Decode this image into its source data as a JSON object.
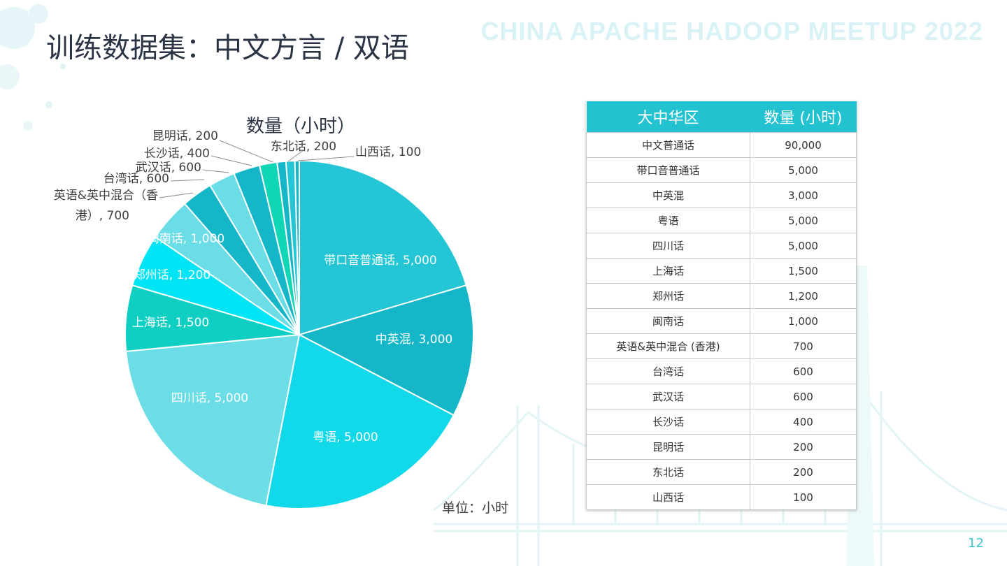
{
  "slide": {
    "title": "训练数据集：中文方言 / 双语",
    "watermark": "CHINA APACHE HADOOP MEETUP 2022",
    "unit_note": "单位：小时",
    "page_number": "12"
  },
  "chart_data": {
    "type": "pie",
    "title": "数量（小时）",
    "slices": [
      {
        "label": "带口音普通话",
        "value": 5000,
        "label_text": "带口音普通话, 5,000",
        "color": "#24c5d4"
      },
      {
        "label": "中英混",
        "value": 3000,
        "label_text": "中英混, 3,000",
        "color": "#14b6c8"
      },
      {
        "label": "粤语",
        "value": 5000,
        "label_text": "粤语, 5,000",
        "color": "#12d9ea"
      },
      {
        "label": "四川话",
        "value": 5000,
        "label_text": "四川话, 5,000",
        "color": "#6bdde6"
      },
      {
        "label": "上海话",
        "value": 1500,
        "label_text": "上海话, 1,500",
        "color": "#0fcfc2"
      },
      {
        "label": "郑州话",
        "value": 1200,
        "label_text": "郑州话, 1,200",
        "color": "#00e5f6"
      },
      {
        "label": "闽南话",
        "value": 1000,
        "label_text": "闽南话, 1,000",
        "color": "#6bdde6"
      },
      {
        "label": "英语&英中混合（香港）",
        "value": 700,
        "label_text": "英语&英中混合（香港）, 700",
        "color": "#14b6c8"
      },
      {
        "label": "台湾话",
        "value": 600,
        "label_text": "台湾话, 600",
        "color": "#6bdde6"
      },
      {
        "label": "武汉话",
        "value": 600,
        "label_text": "武汉话, 600",
        "color": "#14b6c8"
      },
      {
        "label": "长沙话",
        "value": 400,
        "label_text": "长沙话, 400",
        "color": "#0fd6b4"
      },
      {
        "label": "昆明话",
        "value": 200,
        "label_text": "昆明话, 200",
        "color": "#14b6c8"
      },
      {
        "label": "东北话",
        "value": 200,
        "label_text": "东北话, 200",
        "color": "#24c5d4"
      },
      {
        "label": "山西话",
        "value": 100,
        "label_text": "山西话, 100",
        "color": "#14b6c8"
      }
    ]
  },
  "table": {
    "headers": [
      "大中华区",
      "数量 (小时)"
    ],
    "rows": [
      [
        "中文普通话",
        "90,000"
      ],
      [
        "带口音普通话",
        "5,000"
      ],
      [
        "中英混",
        "3,000"
      ],
      [
        "粤语",
        "5,000"
      ],
      [
        "四川话",
        "5,000"
      ],
      [
        "上海话",
        "1,500"
      ],
      [
        "郑州话",
        "1,200"
      ],
      [
        "闽南话",
        "1,000"
      ],
      [
        "英语&英中混合 (香港)",
        "700"
      ],
      [
        "台湾话",
        "600"
      ],
      [
        "武汉话",
        "600"
      ],
      [
        "长沙话",
        "400"
      ],
      [
        "昆明话",
        "200"
      ],
      [
        "东北话",
        "200"
      ],
      [
        "山西话",
        "100"
      ]
    ]
  }
}
